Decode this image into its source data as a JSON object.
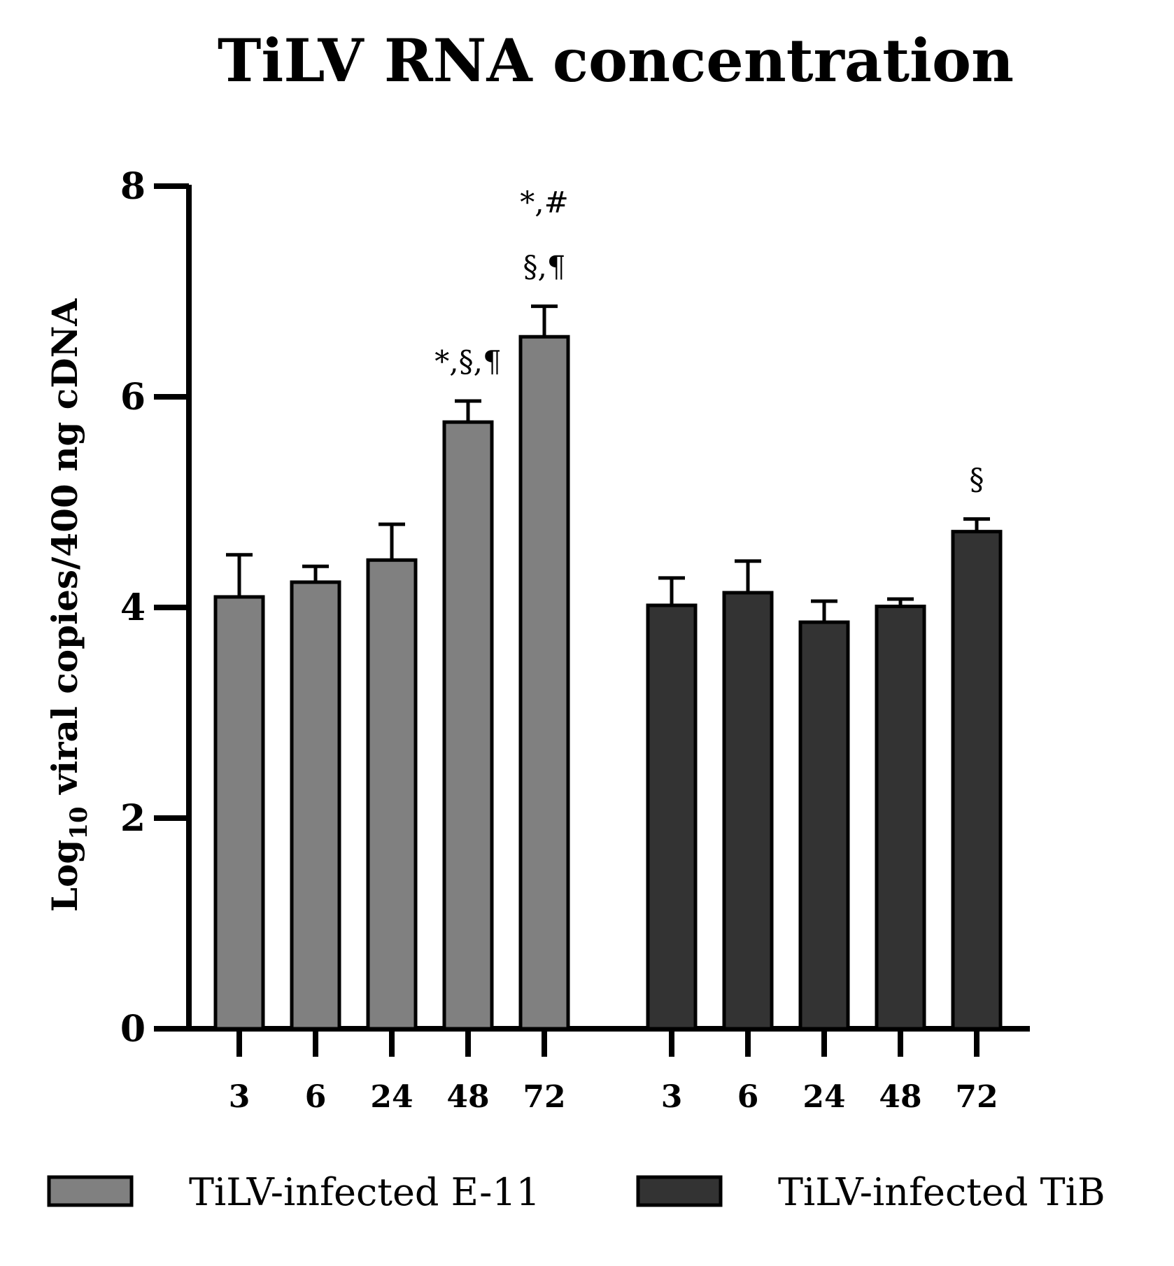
{
  "chart_data": {
    "type": "bar",
    "title": "TiLV RNA concentration",
    "ylabel": {
      "base": "Log",
      "subscript": "10",
      "rest": " viral copies/400 ng cDNA"
    },
    "xlabel": "",
    "ylim": [
      0,
      8
    ],
    "yticks": [
      0,
      2,
      4,
      6,
      8
    ],
    "groups": [
      {
        "name": "TiLV-infected E-11",
        "color": "#808080",
        "categories": [
          "3",
          "6",
          "24",
          "48",
          "72"
        ],
        "values": [
          4.1,
          4.24,
          4.45,
          5.76,
          6.57
        ],
        "errors": [
          0.4,
          0.15,
          0.34,
          0.2,
          0.29
        ],
        "annotations": [
          "",
          "",
          "",
          "*,§,¶",
          "*,#|§,¶"
        ]
      },
      {
        "name": "TiLV-infected TiB",
        "color": "#333333",
        "categories": [
          "3",
          "6",
          "24",
          "48",
          "72"
        ],
        "values": [
          4.02,
          4.14,
          3.86,
          4.01,
          4.72
        ],
        "errors": [
          0.26,
          0.3,
          0.2,
          0.07,
          0.12
        ],
        "annotations": [
          "",
          "",
          "",
          "",
          "§"
        ]
      }
    ],
    "legend": {
      "placement": "bottom",
      "entries": [
        "TiLV-infected E-11",
        "TiLV-infected TiB"
      ]
    }
  }
}
